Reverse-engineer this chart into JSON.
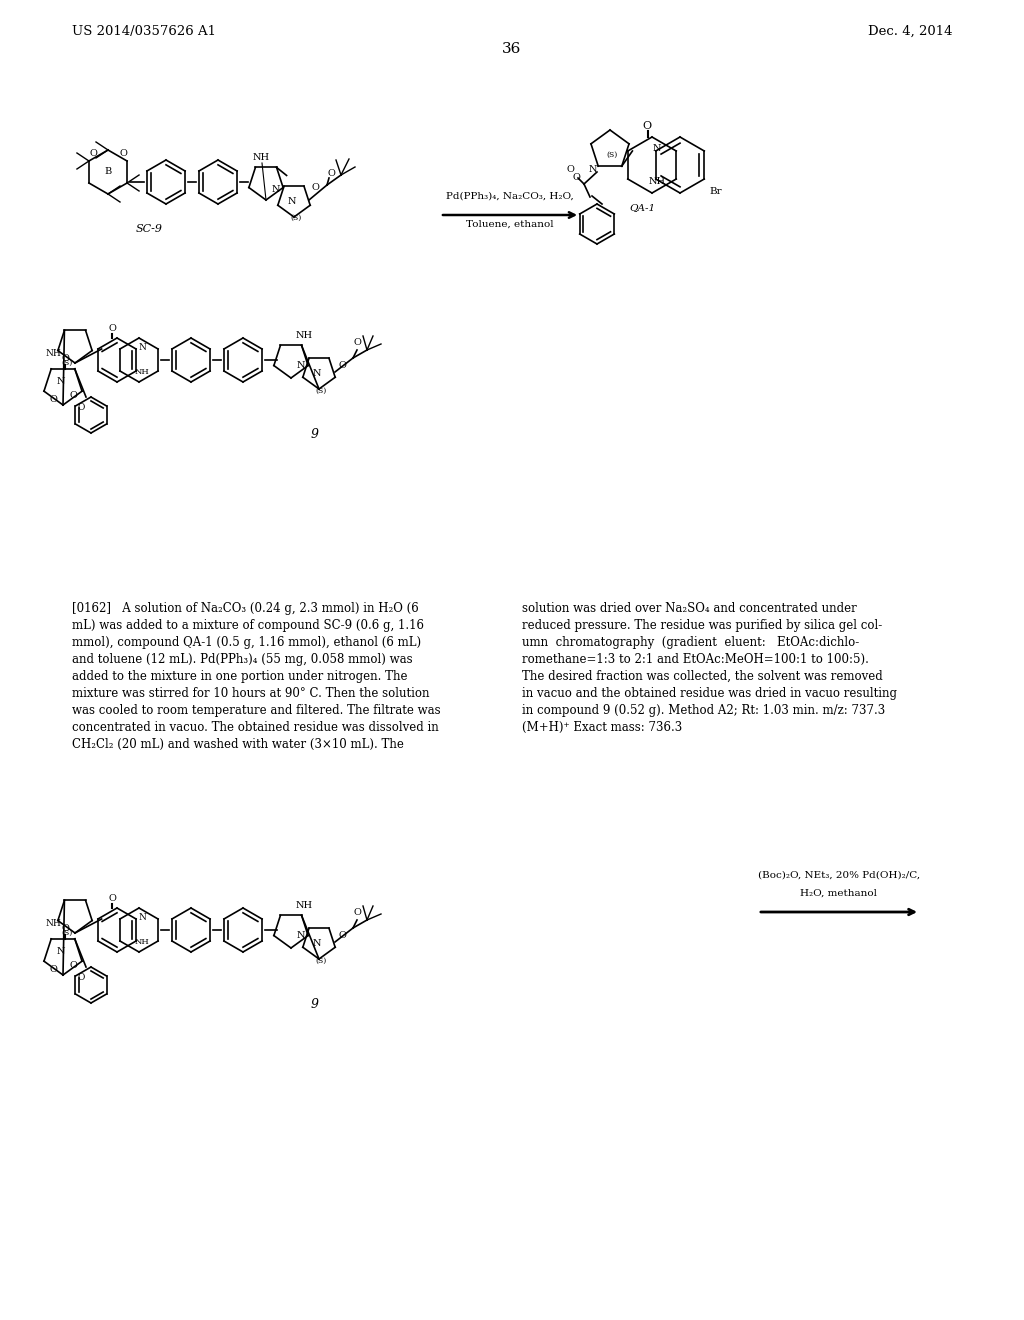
{
  "page_header_left": "US 2014/0357626 A1",
  "page_header_right": "Dec. 4, 2014",
  "page_number": "36",
  "background_color": "#ffffff",
  "text_color": "#000000",
  "reaction_reagents_1": "Pd(PPh₃)₄, Na₂CO₃, H₂O,",
  "reaction_reagents_1b": "Toluene, ethanol",
  "reaction_label_qa1": "QA-1",
  "reaction_reagents_2": "(Boc)₂O, NEt₃, 20% Pd(OH)₂/C,",
  "reaction_reagents_2b": "H₂O, methanol",
  "compound_label_sc9": "SC-9",
  "compound_label_9": "9",
  "font_size_header": 9.5,
  "font_size_body": 8.5,
  "left_lines": [
    "[0162]   A solution of Na₂CO₃ (0.24 g, 2.3 mmol) in H₂O (6",
    "mL) was added to a mixture of compound SC-9 (0.6 g, 1.16",
    "mmol), compound QA-1 (0.5 g, 1.16 mmol), ethanol (6 mL)",
    "and toluene (12 mL). Pd(PPh₃)₄ (55 mg, 0.058 mmol) was",
    "added to the mixture in one portion under nitrogen. The",
    "mixture was stirred for 10 hours at 90° C. Then the solution",
    "was cooled to room temperature and filtered. The filtrate was",
    "concentrated in vacuo. The obtained residue was dissolved in",
    "CH₂Cl₂ (20 mL) and washed with water (3×10 mL). The"
  ],
  "right_lines": [
    "solution was dried over Na₂SO₄ and concentrated under",
    "reduced pressure. The residue was purified by silica gel col-",
    "umn  chromatography  (gradient  eluent:   EtOAc:dichlo-",
    "romethane=1:3 to 2:1 and EtOAc:MeOH=100:1 to 100:5).",
    "The desired fraction was collected, the solvent was removed",
    "in vacuo and the obtained residue was dried in vacuo resulting",
    "in compound 9 (0.52 g). Method A2; Rt: 1.03 min. m/z: 737.3",
    "(M+H)⁺ Exact mass: 736.3"
  ]
}
